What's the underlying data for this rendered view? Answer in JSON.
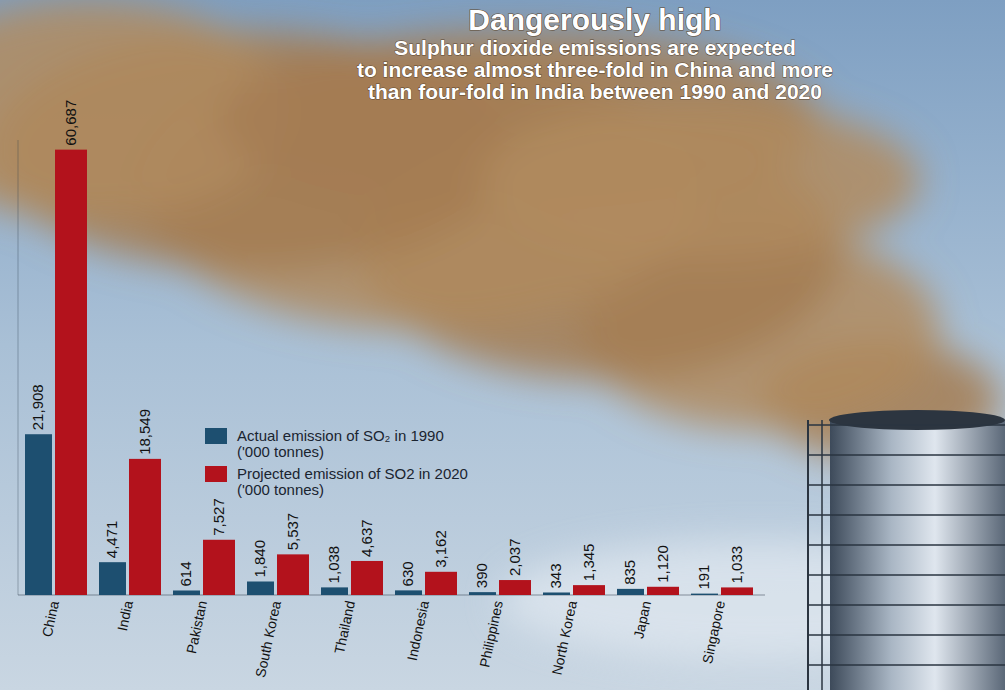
{
  "chart_data": {
    "type": "bar",
    "title": "Dangerously high",
    "subtitle": "Sulphur dioxide emissions are expected\nto increase almost three-fold in China and more\nthan four-fold in India between 1990 and 2020",
    "categories": [
      "China",
      "India",
      "Pakistan",
      "South Korea",
      "Thailand",
      "Indonesia",
      "Philippines",
      "North Korea",
      "Japan",
      "Singapore"
    ],
    "series": [
      {
        "name": "Actual emission of SO₂ in 1990 ('000 tonnes)",
        "color": "#1d4f70",
        "values": [
          21908,
          4471,
          614,
          1840,
          1038,
          630,
          390,
          343,
          835,
          191
        ],
        "value_labels": [
          "21,908",
          "4,471",
          "614",
          "1,840",
          "1,038",
          "630",
          "390",
          "343",
          "835",
          "191"
        ]
      },
      {
        "name": "Projected emission of SO2 in 2020 ('000 tonnes)",
        "color": "#b3121c",
        "values": [
          60687,
          18549,
          7527,
          5537,
          4637,
          3162,
          2037,
          1345,
          1120,
          1033
        ],
        "value_labels": [
          "60,687",
          "18,549",
          "7,527",
          "5,537",
          "4,637",
          "3,162",
          "2,037",
          "1,345",
          "1,120",
          "1,033"
        ]
      }
    ],
    "ylim": [
      0,
      62000
    ],
    "tick_labels": false,
    "data_labels": true,
    "legend": "center",
    "grid": false
  }
}
